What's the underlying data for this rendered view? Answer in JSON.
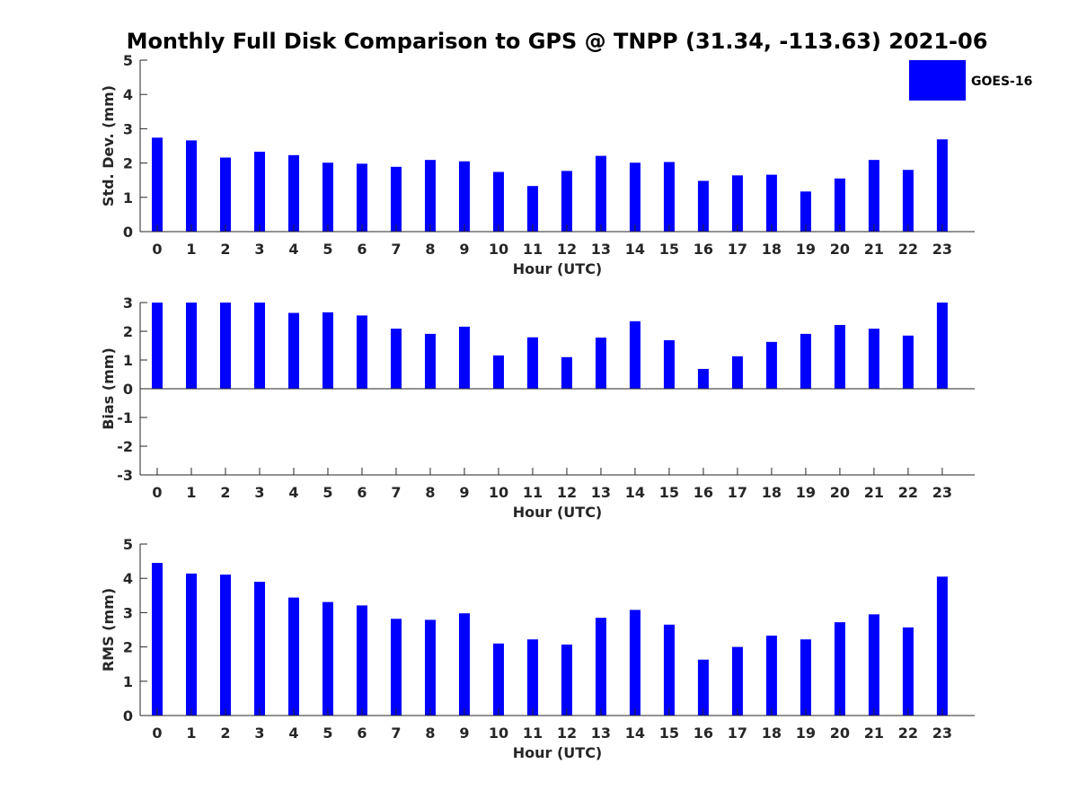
{
  "title": "Monthly Full Disk Comparison to GPS @ TNPP (31.34, -113.63) 2021-06",
  "legend": {
    "label": "GOES-16",
    "color": "#0000ff"
  },
  "chart_data": [
    {
      "type": "bar",
      "name": "std-dev",
      "xlabel": "Hour (UTC)",
      "ylabel": "Std. Dev. (mm)",
      "ylim": [
        0,
        5
      ],
      "yticks": [
        0,
        1,
        2,
        3,
        4,
        5
      ],
      "categories": [
        "0",
        "1",
        "2",
        "3",
        "4",
        "5",
        "6",
        "7",
        "8",
        "9",
        "10",
        "11",
        "12",
        "13",
        "14",
        "15",
        "16",
        "17",
        "18",
        "19",
        "20",
        "21",
        "22",
        "23"
      ],
      "series": [
        {
          "name": "GOES-16",
          "values": [
            2.74,
            2.66,
            2.16,
            2.33,
            2.23,
            2.01,
            1.98,
            1.89,
            2.09,
            2.05,
            1.74,
            1.33,
            1.77,
            2.21,
            2.01,
            2.03,
            1.48,
            1.64,
            1.66,
            1.17,
            1.55,
            2.09,
            1.8,
            2.69
          ]
        }
      ]
    },
    {
      "type": "bar",
      "name": "bias",
      "xlabel": "Hour (UTC)",
      "ylabel": "Bias (mm)",
      "ylim": [
        -3,
        3
      ],
      "yticks": [
        -3,
        -2,
        -1,
        0,
        1,
        2,
        3
      ],
      "categories": [
        "0",
        "1",
        "2",
        "3",
        "4",
        "5",
        "6",
        "7",
        "8",
        "9",
        "10",
        "11",
        "12",
        "13",
        "14",
        "15",
        "16",
        "17",
        "18",
        "19",
        "20",
        "21",
        "22",
        "23"
      ],
      "series": [
        {
          "name": "GOES-16",
          "values": [
            3.0,
            3.0,
            3.0,
            3.0,
            2.64,
            2.66,
            2.55,
            2.09,
            1.91,
            2.16,
            1.16,
            1.79,
            1.1,
            1.78,
            2.35,
            1.69,
            0.69,
            1.13,
            1.63,
            1.91,
            2.22,
            2.09,
            1.85,
            3.0
          ]
        }
      ]
    },
    {
      "type": "bar",
      "name": "rms",
      "xlabel": "Hour (UTC)",
      "ylabel": "RMS (mm)",
      "ylim": [
        0,
        5
      ],
      "yticks": [
        0,
        1,
        2,
        3,
        4,
        5
      ],
      "categories": [
        "0",
        "1",
        "2",
        "3",
        "4",
        "5",
        "6",
        "7",
        "8",
        "9",
        "10",
        "11",
        "12",
        "13",
        "14",
        "15",
        "16",
        "17",
        "18",
        "19",
        "20",
        "21",
        "22",
        "23"
      ],
      "series": [
        {
          "name": "GOES-16",
          "values": [
            4.45,
            4.14,
            4.11,
            3.9,
            3.44,
            3.31,
            3.21,
            2.82,
            2.79,
            2.98,
            2.1,
            2.22,
            2.07,
            2.85,
            3.08,
            2.65,
            1.63,
            2.0,
            2.33,
            2.22,
            2.72,
            2.95,
            2.57,
            4.05
          ]
        }
      ]
    }
  ]
}
